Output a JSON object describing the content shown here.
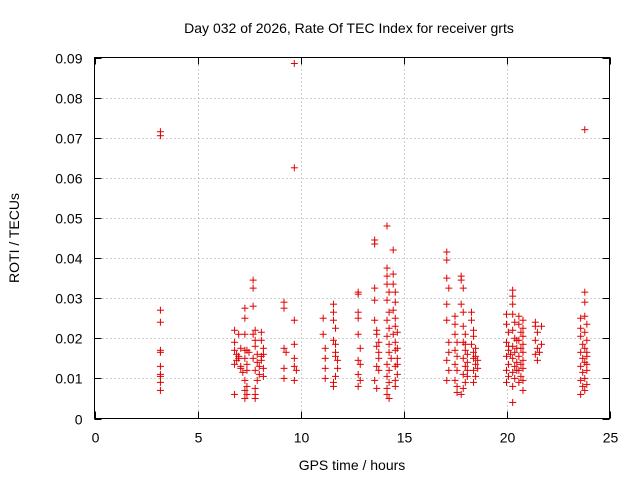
{
  "chart_data": {
    "type": "scatter",
    "title": "Day 032 of 2026, Rate Of TEC Index for receiver grts",
    "xlabel": "GPS time / hours",
    "ylabel": "ROTI / TECUs",
    "xlim": [
      0,
      25
    ],
    "ylim": [
      0,
      0.09
    ],
    "xticks": [
      0,
      5,
      10,
      15,
      20,
      25
    ],
    "yticks": [
      0,
      0.01,
      0.02,
      0.03,
      0.04,
      0.05,
      0.06,
      0.07,
      0.08,
      0.09
    ],
    "xtick_labels": [
      "0",
      "5",
      "10",
      "15",
      "20",
      "25"
    ],
    "ytick_labels": [
      "0",
      "0.01",
      "0.02",
      "0.03",
      "0.04",
      "0.05",
      "0.06",
      "0.07",
      "0.08",
      "0.09"
    ],
    "grid": true,
    "marker": "plus",
    "color": "#e00000",
    "points": [
      [
        3.2,
        0.0715
      ],
      [
        3.2,
        0.0705
      ],
      [
        3.2,
        0.027
      ],
      [
        3.2,
        0.024
      ],
      [
        3.2,
        0.017
      ],
      [
        3.2,
        0.0165
      ],
      [
        3.2,
        0.013
      ],
      [
        3.2,
        0.011
      ],
      [
        3.2,
        0.0105
      ],
      [
        3.2,
        0.009
      ],
      [
        3.2,
        0.007
      ],
      [
        6.8,
        0.022
      ],
      [
        6.8,
        0.019
      ],
      [
        6.8,
        0.017
      ],
      [
        6.9,
        0.016
      ],
      [
        6.8,
        0.0135
      ],
      [
        6.8,
        0.006
      ],
      [
        6.9,
        0.0145
      ],
      [
        7.0,
        0.0155
      ],
      [
        7.0,
        0.021
      ],
      [
        7.1,
        0.0175
      ],
      [
        7.0,
        0.015
      ],
      [
        7.1,
        0.013
      ],
      [
        7.1,
        0.0125
      ],
      [
        7.2,
        0.0115
      ],
      [
        7.3,
        0.0275
      ],
      [
        7.3,
        0.025
      ],
      [
        7.3,
        0.021
      ],
      [
        7.3,
        0.017
      ],
      [
        7.3,
        0.015
      ],
      [
        7.4,
        0.012
      ],
      [
        7.3,
        0.0095
      ],
      [
        7.4,
        0.008
      ],
      [
        7.3,
        0.007
      ],
      [
        7.4,
        0.006
      ],
      [
        7.3,
        0.005
      ],
      [
        7.4,
        0.017
      ],
      [
        7.4,
        0.0135
      ],
      [
        7.5,
        0.0165
      ],
      [
        7.7,
        0.0345
      ],
      [
        7.7,
        0.0325
      ],
      [
        7.7,
        0.028
      ],
      [
        7.8,
        0.022
      ],
      [
        7.7,
        0.021
      ],
      [
        7.8,
        0.0195
      ],
      [
        7.8,
        0.018
      ],
      [
        7.9,
        0.016
      ],
      [
        7.7,
        0.015
      ],
      [
        7.9,
        0.014
      ],
      [
        8.0,
        0.013
      ],
      [
        7.8,
        0.012
      ],
      [
        8.0,
        0.011
      ],
      [
        7.9,
        0.0095
      ],
      [
        7.8,
        0.0075
      ],
      [
        7.8,
        0.006
      ],
      [
        7.8,
        0.005
      ],
      [
        8.1,
        0.0215
      ],
      [
        8.1,
        0.0195
      ],
      [
        8.2,
        0.0175
      ],
      [
        8.2,
        0.016
      ],
      [
        8.1,
        0.0145
      ],
      [
        8.2,
        0.0125
      ],
      [
        8.2,
        0.0105
      ],
      [
        8.1,
        0.0155
      ],
      [
        9.2,
        0.029
      ],
      [
        9.2,
        0.0275
      ],
      [
        9.2,
        0.0175
      ],
      [
        9.3,
        0.0165
      ],
      [
        9.2,
        0.0125
      ],
      [
        9.2,
        0.01
      ],
      [
        9.7,
        0.0885
      ],
      [
        9.7,
        0.0625
      ],
      [
        9.7,
        0.0245
      ],
      [
        9.7,
        0.0185
      ],
      [
        9.7,
        0.015
      ],
      [
        9.7,
        0.013
      ],
      [
        9.8,
        0.012
      ],
      [
        9.7,
        0.0095
      ],
      [
        11.1,
        0.025
      ],
      [
        11.1,
        0.021
      ],
      [
        11.2,
        0.0175
      ],
      [
        11.2,
        0.015
      ],
      [
        11.2,
        0.0125
      ],
      [
        11.2,
        0.01
      ],
      [
        11.6,
        0.0285
      ],
      [
        11.6,
        0.0265
      ],
      [
        11.6,
        0.0245
      ],
      [
        11.7,
        0.0225
      ],
      [
        11.6,
        0.0195
      ],
      [
        11.7,
        0.0185
      ],
      [
        11.7,
        0.0165
      ],
      [
        11.7,
        0.0155
      ],
      [
        11.8,
        0.0145
      ],
      [
        11.8,
        0.0125
      ],
      [
        11.7,
        0.0105
      ],
      [
        11.6,
        0.009
      ],
      [
        11.6,
        0.008
      ],
      [
        12.8,
        0.0315
      ],
      [
        12.8,
        0.031
      ],
      [
        12.8,
        0.0265
      ],
      [
        12.8,
        0.025
      ],
      [
        12.8,
        0.021
      ],
      [
        12.9,
        0.0175
      ],
      [
        12.8,
        0.0145
      ],
      [
        12.9,
        0.0135
      ],
      [
        12.8,
        0.011
      ],
      [
        12.9,
        0.0095
      ],
      [
        12.8,
        0.008
      ],
      [
        13.6,
        0.0445
      ],
      [
        13.6,
        0.0435
      ],
      [
        13.6,
        0.0325
      ],
      [
        13.6,
        0.0295
      ],
      [
        13.6,
        0.0245
      ],
      [
        13.7,
        0.022
      ],
      [
        13.7,
        0.021
      ],
      [
        13.8,
        0.019
      ],
      [
        13.7,
        0.018
      ],
      [
        13.8,
        0.0165
      ],
      [
        13.8,
        0.015
      ],
      [
        13.7,
        0.013
      ],
      [
        13.8,
        0.012
      ],
      [
        13.6,
        0.0095
      ],
      [
        13.7,
        0.0075
      ],
      [
        14.2,
        0.048
      ],
      [
        14.2,
        0.0375
      ],
      [
        14.2,
        0.0355
      ],
      [
        14.2,
        0.0335
      ],
      [
        14.3,
        0.0315
      ],
      [
        14.2,
        0.0295
      ],
      [
        14.3,
        0.0265
      ],
      [
        14.2,
        0.0245
      ],
      [
        14.3,
        0.0225
      ],
      [
        14.2,
        0.0205
      ],
      [
        14.3,
        0.0185
      ],
      [
        14.3,
        0.0165
      ],
      [
        14.4,
        0.015
      ],
      [
        14.2,
        0.0135
      ],
      [
        14.3,
        0.012
      ],
      [
        14.2,
        0.0105
      ],
      [
        14.3,
        0.009
      ],
      [
        14.2,
        0.0075
      ],
      [
        14.2,
        0.006
      ],
      [
        14.3,
        0.005
      ],
      [
        14.5,
        0.042
      ],
      [
        14.5,
        0.036
      ],
      [
        14.5,
        0.0335
      ],
      [
        14.6,
        0.0315
      ],
      [
        14.6,
        0.029
      ],
      [
        14.5,
        0.027
      ],
      [
        14.6,
        0.025
      ],
      [
        14.6,
        0.023
      ],
      [
        14.5,
        0.021
      ],
      [
        14.6,
        0.019
      ],
      [
        14.6,
        0.017
      ],
      [
        14.7,
        0.015
      ],
      [
        14.6,
        0.013
      ],
      [
        14.7,
        0.011
      ],
      [
        14.6,
        0.0095
      ],
      [
        14.6,
        0.008
      ],
      [
        14.7,
        0.0135
      ],
      [
        14.7,
        0.0175
      ],
      [
        14.7,
        0.0215
      ],
      [
        17.1,
        0.0415
      ],
      [
        17.1,
        0.0395
      ],
      [
        17.1,
        0.035
      ],
      [
        17.2,
        0.0325
      ],
      [
        17.1,
        0.0285
      ],
      [
        17.1,
        0.0245
      ],
      [
        17.2,
        0.019
      ],
      [
        17.2,
        0.0165
      ],
      [
        17.1,
        0.0145
      ],
      [
        17.2,
        0.012
      ],
      [
        17.1,
        0.0095
      ],
      [
        17.5,
        0.0255
      ],
      [
        17.5,
        0.0235
      ],
      [
        17.5,
        0.021
      ],
      [
        17.6,
        0.019
      ],
      [
        17.5,
        0.017
      ],
      [
        17.6,
        0.0155
      ],
      [
        17.5,
        0.0135
      ],
      [
        17.6,
        0.012
      ],
      [
        17.5,
        0.0095
      ],
      [
        17.6,
        0.008
      ],
      [
        17.6,
        0.0065
      ],
      [
        17.8,
        0.0355
      ],
      [
        17.8,
        0.0345
      ],
      [
        17.9,
        0.0325
      ],
      [
        17.8,
        0.0285
      ],
      [
        17.9,
        0.0265
      ],
      [
        17.9,
        0.023
      ],
      [
        18.0,
        0.021
      ],
      [
        17.9,
        0.019
      ],
      [
        18.0,
        0.017
      ],
      [
        17.9,
        0.015
      ],
      [
        18.0,
        0.013
      ],
      [
        17.9,
        0.011
      ],
      [
        18.0,
        0.009
      ],
      [
        17.9,
        0.0075
      ],
      [
        17.8,
        0.006
      ],
      [
        18.0,
        0.0185
      ],
      [
        18.1,
        0.016
      ],
      [
        18.1,
        0.014
      ],
      [
        18.1,
        0.012
      ],
      [
        18.1,
        0.0105
      ],
      [
        18.3,
        0.0265
      ],
      [
        18.3,
        0.0245
      ],
      [
        18.4,
        0.022
      ],
      [
        18.4,
        0.0205
      ],
      [
        18.3,
        0.0185
      ],
      [
        18.4,
        0.0165
      ],
      [
        18.4,
        0.015
      ],
      [
        18.5,
        0.0135
      ],
      [
        18.4,
        0.012
      ],
      [
        18.5,
        0.0105
      ],
      [
        18.4,
        0.009
      ],
      [
        18.5,
        0.0175
      ],
      [
        18.5,
        0.0155
      ],
      [
        18.6,
        0.0145
      ],
      [
        18.6,
        0.0125
      ],
      [
        20.0,
        0.026
      ],
      [
        20.0,
        0.0235
      ],
      [
        20.1,
        0.0215
      ],
      [
        20.0,
        0.019
      ],
      [
        20.1,
        0.017
      ],
      [
        20.0,
        0.0155
      ],
      [
        20.1,
        0.0135
      ],
      [
        20.0,
        0.012
      ],
      [
        20.1,
        0.0105
      ],
      [
        20.0,
        0.009
      ],
      [
        20.1,
        0.018
      ],
      [
        20.2,
        0.016
      ],
      [
        20.3,
        0.032
      ],
      [
        20.3,
        0.0305
      ],
      [
        20.3,
        0.0285
      ],
      [
        20.3,
        0.026
      ],
      [
        20.4,
        0.024
      ],
      [
        20.3,
        0.022
      ],
      [
        20.4,
        0.02
      ],
      [
        20.3,
        0.018
      ],
      [
        20.4,
        0.0165
      ],
      [
        20.3,
        0.015
      ],
      [
        20.4,
        0.013
      ],
      [
        20.3,
        0.0115
      ],
      [
        20.4,
        0.01
      ],
      [
        20.3,
        0.008
      ],
      [
        20.3,
        0.004
      ],
      [
        20.5,
        0.0195
      ],
      [
        20.5,
        0.0175
      ],
      [
        20.5,
        0.014
      ],
      [
        20.5,
        0.012
      ],
      [
        20.6,
        0.0255
      ],
      [
        20.6,
        0.0235
      ],
      [
        20.7,
        0.0215
      ],
      [
        20.6,
        0.0195
      ],
      [
        20.7,
        0.0175
      ],
      [
        20.6,
        0.0155
      ],
      [
        20.7,
        0.0135
      ],
      [
        20.6,
        0.012
      ],
      [
        20.7,
        0.0105
      ],
      [
        20.6,
        0.009
      ],
      [
        20.8,
        0.0245
      ],
      [
        20.8,
        0.0225
      ],
      [
        20.8,
        0.0205
      ],
      [
        20.8,
        0.0185
      ],
      [
        20.8,
        0.0165
      ],
      [
        20.8,
        0.0145
      ],
      [
        20.8,
        0.0125
      ],
      [
        20.8,
        0.0095
      ],
      [
        20.8,
        0.007
      ],
      [
        21.4,
        0.024
      ],
      [
        21.4,
        0.023
      ],
      [
        21.5,
        0.0215
      ],
      [
        21.4,
        0.0195
      ],
      [
        21.5,
        0.0175
      ],
      [
        21.4,
        0.016
      ],
      [
        21.5,
        0.0145
      ],
      [
        21.6,
        0.0165
      ],
      [
        21.7,
        0.0185
      ],
      [
        21.7,
        0.023
      ],
      [
        23.6,
        0.025
      ],
      [
        23.6,
        0.0225
      ],
      [
        23.6,
        0.0205
      ],
      [
        23.7,
        0.0185
      ],
      [
        23.6,
        0.0165
      ],
      [
        23.7,
        0.015
      ],
      [
        23.6,
        0.013
      ],
      [
        23.7,
        0.0115
      ],
      [
        23.6,
        0.0095
      ],
      [
        23.7,
        0.008
      ],
      [
        23.6,
        0.006
      ],
      [
        23.8,
        0.072
      ],
      [
        23.8,
        0.0315
      ],
      [
        23.8,
        0.029
      ],
      [
        23.8,
        0.0255
      ],
      [
        23.9,
        0.0235
      ],
      [
        23.8,
        0.0215
      ],
      [
        23.9,
        0.0195
      ],
      [
        23.8,
        0.0175
      ],
      [
        23.9,
        0.0155
      ],
      [
        23.8,
        0.014
      ],
      [
        23.9,
        0.012
      ],
      [
        23.8,
        0.01
      ],
      [
        23.9,
        0.0085
      ],
      [
        23.8,
        0.007
      ],
      [
        23.9,
        0.0165
      ],
      [
        23.9,
        0.0135
      ]
    ]
  }
}
